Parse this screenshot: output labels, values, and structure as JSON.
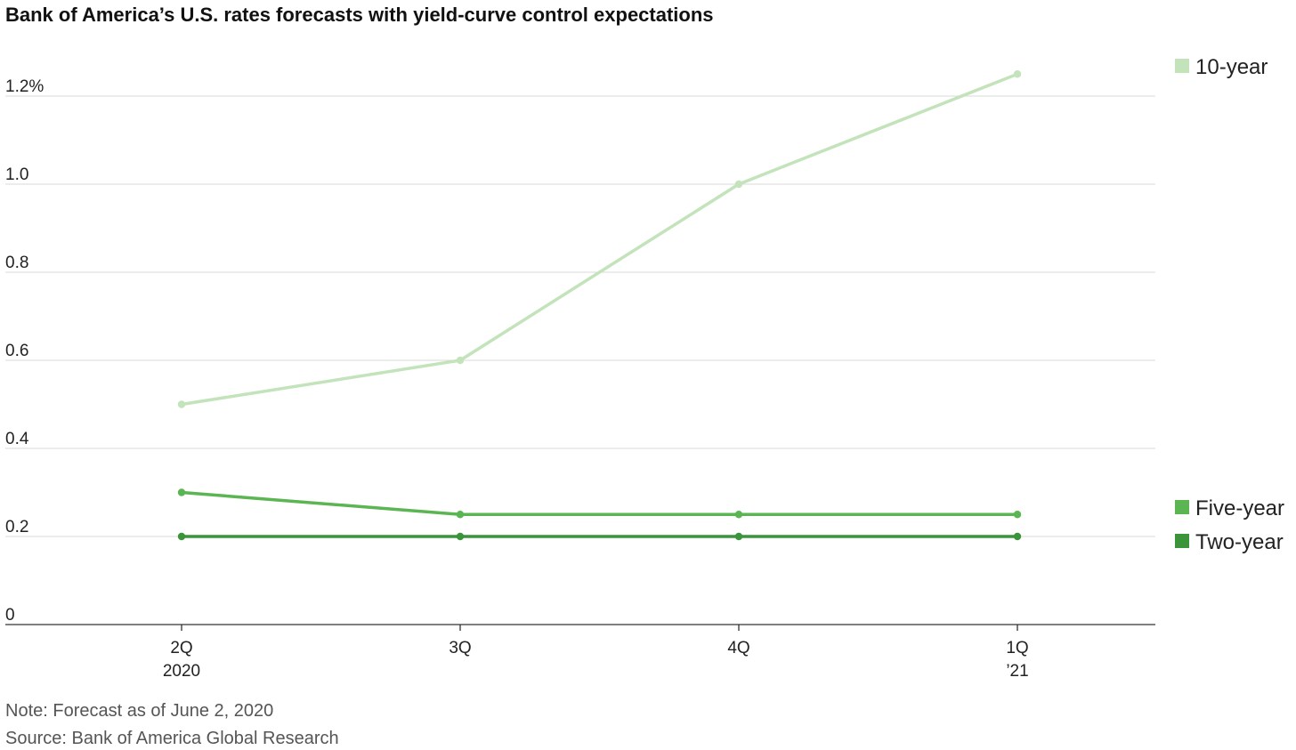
{
  "chart_data": {
    "type": "line",
    "title": "Bank of America’s U.S. rates forecasts with yield-curve control expectations",
    "categories": [
      {
        "top": "2Q",
        "bottom": "2020"
      },
      {
        "top": "3Q",
        "bottom": ""
      },
      {
        "top": "4Q",
        "bottom": ""
      },
      {
        "top": "1Q",
        "bottom": "’21"
      }
    ],
    "y_ticks": [
      {
        "value": 0,
        "label": "0"
      },
      {
        "value": 0.2,
        "label": "0.2"
      },
      {
        "value": 0.4,
        "label": "0.4"
      },
      {
        "value": 0.6,
        "label": "0.6"
      },
      {
        "value": 0.8,
        "label": "0.8"
      },
      {
        "value": 1.0,
        "label": "1.0"
      },
      {
        "value": 1.2,
        "label": "1.2%"
      }
    ],
    "ylim": [
      0,
      1.2
    ],
    "grid": true,
    "legend_position": "right",
    "series": [
      {
        "name": "10-year",
        "color": "#c3e3bb",
        "values": [
          0.5,
          0.6,
          1.0,
          1.25
        ]
      },
      {
        "name": "Five-year",
        "color": "#5ab552",
        "values": [
          0.3,
          0.25,
          0.25,
          0.25
        ]
      },
      {
        "name": "Two-year",
        "color": "#3a943a",
        "values": [
          0.2,
          0.2,
          0.2,
          0.2
        ]
      }
    ],
    "note": "Note: Forecast as of June 2, 2020",
    "source": "Source: Bank of America Global Research"
  }
}
